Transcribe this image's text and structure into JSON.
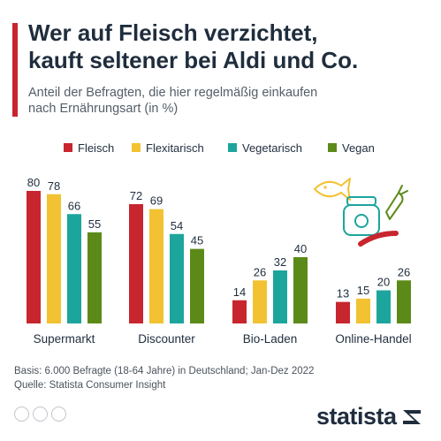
{
  "header": {
    "title_lines": [
      "Wer auf Fleisch verzichtet,",
      "kauft seltener bei Aldi und Co."
    ],
    "subtitle_lines": [
      "Anteil der Befragten, die hier regelmäßig einkaufen",
      "nach Ernährungsart (in %)"
    ]
  },
  "colors": {
    "accent": "#c8262e",
    "Fleisch": "#c8262e",
    "Flexitarisch": "#f2c232",
    "Vegetarisch": "#1ca59c",
    "Vegan": "#5c8a19"
  },
  "chart_data": {
    "type": "bar",
    "title": "Wer auf Fleisch verzichtet, kauft seltener bei Aldi und Co.",
    "subtitle": "Anteil der Befragten, die hier regelmäßig einkaufen nach Ernährungsart (in %)",
    "categories": [
      "Supermarkt",
      "Discounter",
      "Bio-Laden",
      "Online-Handel"
    ],
    "series": [
      {
        "name": "Fleisch",
        "values": [
          80,
          72,
          14,
          13
        ]
      },
      {
        "name": "Flexitarisch",
        "values": [
          78,
          69,
          26,
          15
        ]
      },
      {
        "name": "Vegetarisch",
        "values": [
          66,
          54,
          32,
          20
        ]
      },
      {
        "name": "Vegan",
        "values": [
          55,
          45,
          40,
          26
        ]
      }
    ],
    "ylim": [
      0,
      80
    ],
    "grid": false,
    "legend_position": "top"
  },
  "footer": {
    "basis": "Basis: 6.000 Befragte (18-64 Jahre) in Deutschland; Jan-Dez 2022",
    "source": "Quelle: Statista Consumer Insight"
  },
  "branding": {
    "logo_text": "statista"
  },
  "icons": [
    "cc-icon",
    "person-icon",
    "equals-icon",
    "food-illustration-icon",
    "statista-logo-icon"
  ]
}
